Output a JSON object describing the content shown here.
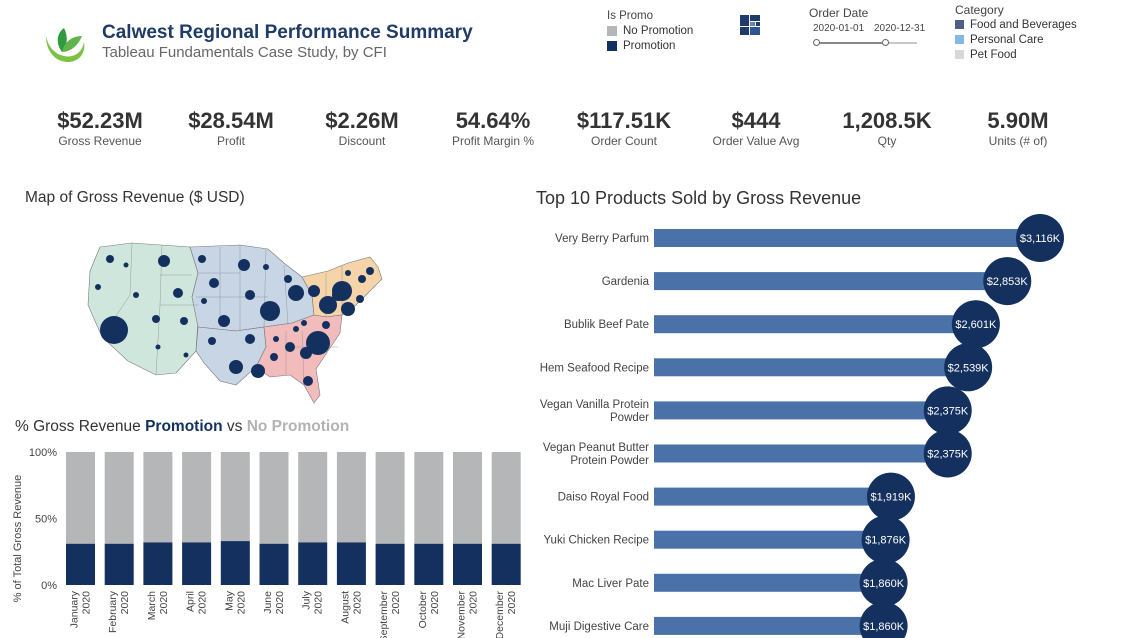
{
  "header": {
    "title": "Calwest Regional Performance Summary",
    "subtitle": "Tableau Fundamentals Case Study, by CFI"
  },
  "filters": {
    "is_promo": {
      "label": "Is Promo",
      "options": [
        {
          "label": "No Promotion",
          "color": "#b5b6b8"
        },
        {
          "label": "Promotion",
          "color": "#13305e"
        }
      ]
    },
    "order_date": {
      "label": "Order Date",
      "start": "2020-01-01",
      "end": "2020-12-31"
    },
    "category": {
      "label": "Category",
      "options": [
        {
          "label": "Food and Beverages",
          "color": "#4e5f84"
        },
        {
          "label": "Personal Care",
          "color": "#85b8e0"
        },
        {
          "label": "Pet Food",
          "color": "#d8d8d8"
        }
      ]
    }
  },
  "kpis": [
    {
      "value": "$52.23M",
      "label": "Gross Revenue"
    },
    {
      "value": "$28.54M",
      "label": "Profit"
    },
    {
      "value": "$2.26M",
      "label": "Discount"
    },
    {
      "value": "54.64%",
      "label": "Profit Margin %"
    },
    {
      "value": "$117.51K",
      "label": "Order Count"
    },
    {
      "value": "$444",
      "label": "Order Value Avg"
    },
    {
      "value": "1,208.5K",
      "label": "Qty"
    },
    {
      "value": "5.90M",
      "label": "Units (# of)"
    }
  ],
  "map": {
    "title": "Map of Gross Revenue ($ USD)",
    "region_colors": {
      "west": "#cfe6dd",
      "midwest": "#c7d5e4",
      "northeast": "#f4d4a8",
      "south": "#f3bcbc"
    },
    "bubble_color": "#13305e"
  },
  "chart_data": [
    {
      "type": "bar",
      "stacked": true,
      "title": "% Gross Revenue Promotion vs No Promotion",
      "title_parts": {
        "pre": "% Gross Revenue ",
        "promo": "Promotion",
        "mid": " vs ",
        "nopromo": "No Promotion"
      },
      "ylabel": "% of Total Gross Revenue",
      "ylim": [
        0,
        100
      ],
      "yticks": [
        "0%",
        "50%",
        "100%"
      ],
      "categories": [
        "January 2020",
        "February 2020",
        "March 2020",
        "April 2020",
        "May 2020",
        "June 2020",
        "July 2020",
        "August 2020",
        "September 2020",
        "October 2020",
        "November 2020",
        "December 2020"
      ],
      "series": [
        {
          "name": "Promotion",
          "color": "#13305e",
          "values": [
            31,
            31,
            32,
            32,
            33,
            31,
            32,
            32,
            31,
            31,
            31,
            31
          ]
        },
        {
          "name": "No Promotion",
          "color": "#b5b6b8",
          "values": [
            69,
            69,
            68,
            68,
            67,
            69,
            68,
            68,
            69,
            69,
            69,
            69
          ]
        }
      ]
    },
    {
      "type": "bar",
      "orientation": "horizontal",
      "title": "Top 10 Products Sold by Gross Revenue",
      "categories": [
        "Very Berry Parfum",
        "Gardenia",
        "Bublik Beef Pate",
        "Hem Seafood Recipe",
        "Vegan Vanilla Protein Powder",
        "Vegan Peanut Butter Protein Powder",
        "Daiso Royal Food",
        "Yuki Chicken Recipe",
        "Mac Liver Pate",
        "Muji Digestive Care"
      ],
      "category_lines": [
        [
          "Very Berry Parfum"
        ],
        [
          "Gardenia"
        ],
        [
          "Bublik Beef Pate"
        ],
        [
          "Hem Seafood Recipe"
        ],
        [
          "Vegan Vanilla Protein",
          "Powder"
        ],
        [
          "Vegan Peanut Butter",
          "Protein Powder"
        ],
        [
          "Daiso Royal Food"
        ],
        [
          "Yuki Chicken Recipe"
        ],
        [
          "Mac Liver Pate"
        ],
        [
          "Muji Digestive Care"
        ]
      ],
      "values": [
        3116,
        2853,
        2601,
        2539,
        2375,
        2375,
        1919,
        1876,
        1860,
        1860
      ],
      "labels": [
        "$3,116K",
        "$2,853K",
        "$2,601K",
        "$2,539K",
        "$2,375K",
        "$2,375K",
        "$1,919K",
        "$1,876K",
        "$1,860K",
        "$1,860K"
      ],
      "bar_color": "#4a72a8",
      "marker_color": "#13305e"
    }
  ]
}
